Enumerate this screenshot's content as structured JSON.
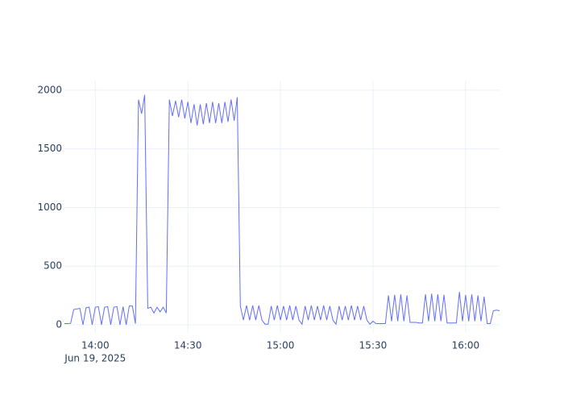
{
  "chart_data": {
    "type": "line",
    "color": "#636efa",
    "grid": true,
    "x_date_label": "Jun 19, 2025",
    "xlim": [
      "2025-06-19 13:50",
      "2025-06-19 16:11"
    ],
    "ylim": [
      -69,
      2082
    ],
    "yticks": [
      0,
      500,
      1000,
      1500,
      2000
    ],
    "xticks": [
      {
        "value": "2025-06-19 14:00",
        "label": "14:00"
      },
      {
        "value": "2025-06-19 14:30",
        "label": "14:30"
      },
      {
        "value": "2025-06-19 15:00",
        "label": "15:00"
      },
      {
        "value": "2025-06-19 15:30",
        "label": "15:30"
      },
      {
        "value": "2025-06-19 16:00",
        "label": "16:00"
      }
    ],
    "x": [
      "2025-06-19 13:50",
      "2025-06-19 13:51",
      "2025-06-19 13:52",
      "2025-06-19 13:53",
      "2025-06-19 13:54",
      "2025-06-19 13:55",
      "2025-06-19 13:56",
      "2025-06-19 13:57",
      "2025-06-19 13:58",
      "2025-06-19 13:59",
      "2025-06-19 14:00",
      "2025-06-19 14:01",
      "2025-06-19 14:02",
      "2025-06-19 14:03",
      "2025-06-19 14:04",
      "2025-06-19 14:05",
      "2025-06-19 14:06",
      "2025-06-19 14:07",
      "2025-06-19 14:08",
      "2025-06-19 14:09",
      "2025-06-19 14:10",
      "2025-06-19 14:11",
      "2025-06-19 14:12",
      "2025-06-19 14:13",
      "2025-06-19 14:14",
      "2025-06-19 14:15",
      "2025-06-19 14:16",
      "2025-06-19 14:17",
      "2025-06-19 14:18",
      "2025-06-19 14:19",
      "2025-06-19 14:20",
      "2025-06-19 14:21",
      "2025-06-19 14:22",
      "2025-06-19 14:23",
      "2025-06-19 14:24",
      "2025-06-19 14:25",
      "2025-06-19 14:26",
      "2025-06-19 14:27",
      "2025-06-19 14:28",
      "2025-06-19 14:29",
      "2025-06-19 14:30",
      "2025-06-19 14:31",
      "2025-06-19 14:32",
      "2025-06-19 14:33",
      "2025-06-19 14:34",
      "2025-06-19 14:35",
      "2025-06-19 14:36",
      "2025-06-19 14:37",
      "2025-06-19 14:38",
      "2025-06-19 14:39",
      "2025-06-19 14:40",
      "2025-06-19 14:41",
      "2025-06-19 14:42",
      "2025-06-19 14:43",
      "2025-06-19 14:44",
      "2025-06-19 14:45",
      "2025-06-19 14:46",
      "2025-06-19 14:47",
      "2025-06-19 14:48",
      "2025-06-19 14:49",
      "2025-06-19 14:50",
      "2025-06-19 14:51",
      "2025-06-19 14:52",
      "2025-06-19 14:53",
      "2025-06-19 14:54",
      "2025-06-19 14:55",
      "2025-06-19 14:56",
      "2025-06-19 14:57",
      "2025-06-19 14:58",
      "2025-06-19 14:59",
      "2025-06-19 15:00",
      "2025-06-19 15:01",
      "2025-06-19 15:02",
      "2025-06-19 15:03",
      "2025-06-19 15:04",
      "2025-06-19 15:05",
      "2025-06-19 15:06",
      "2025-06-19 15:07",
      "2025-06-19 15:08",
      "2025-06-19 15:09",
      "2025-06-19 15:10",
      "2025-06-19 15:11",
      "2025-06-19 15:12",
      "2025-06-19 15:13",
      "2025-06-19 15:14",
      "2025-06-19 15:15",
      "2025-06-19 15:16",
      "2025-06-19 15:17",
      "2025-06-19 15:18",
      "2025-06-19 15:19",
      "2025-06-19 15:20",
      "2025-06-19 15:21",
      "2025-06-19 15:22",
      "2025-06-19 15:23",
      "2025-06-19 15:24",
      "2025-06-19 15:25",
      "2025-06-19 15:26",
      "2025-06-19 15:27",
      "2025-06-19 15:28",
      "2025-06-19 15:29",
      "2025-06-19 15:30",
      "2025-06-19 15:31",
      "2025-06-19 15:32",
      "2025-06-19 15:33",
      "2025-06-19 15:34",
      "2025-06-19 15:35",
      "2025-06-19 15:36",
      "2025-06-19 15:37",
      "2025-06-19 15:38",
      "2025-06-19 15:39",
      "2025-06-19 15:40",
      "2025-06-19 15:41",
      "2025-06-19 15:42",
      "2025-06-19 15:43",
      "2025-06-19 15:44",
      "2025-06-19 15:45",
      "2025-06-19 15:46",
      "2025-06-19 15:47",
      "2025-06-19 15:48",
      "2025-06-19 15:49",
      "2025-06-19 15:50",
      "2025-06-19 15:51",
      "2025-06-19 15:52",
      "2025-06-19 15:53",
      "2025-06-19 15:54",
      "2025-06-19 15:55",
      "2025-06-19 15:56",
      "2025-06-19 15:57",
      "2025-06-19 15:58",
      "2025-06-19 15:59",
      "2025-06-19 16:00",
      "2025-06-19 16:01",
      "2025-06-19 16:02",
      "2025-06-19 16:03",
      "2025-06-19 16:04",
      "2025-06-19 16:05",
      "2025-06-19 16:06",
      "2025-06-19 16:07",
      "2025-06-19 16:08",
      "2025-06-19 16:09",
      "2025-06-19 16:10",
      "2025-06-19 16:11"
    ],
    "values": [
      10,
      10,
      12,
      130,
      135,
      140,
      0,
      145,
      150,
      0,
      150,
      155,
      0,
      150,
      155,
      0,
      150,
      155,
      0,
      155,
      0,
      160,
      160,
      10,
      1920,
      1800,
      1960,
      140,
      150,
      100,
      150,
      110,
      150,
      100,
      1920,
      1780,
      1910,
      1770,
      1920,
      1760,
      1900,
      1720,
      1880,
      1700,
      1880,
      1710,
      1890,
      1720,
      1900,
      1720,
      1890,
      1720,
      1900,
      1730,
      1920,
      1740,
      1940,
      160,
      40,
      165,
      40,
      165,
      40,
      165,
      40,
      5,
      5,
      160,
      40,
      165,
      40,
      160,
      40,
      165,
      40,
      160,
      40,
      5,
      160,
      40,
      165,
      40,
      160,
      40,
      165,
      40,
      160,
      40,
      5,
      160,
      40,
      160,
      40,
      165,
      40,
      160,
      40,
      160,
      40,
      5,
      30,
      10,
      10,
      10,
      10,
      250,
      30,
      255,
      30,
      260,
      30,
      250,
      20,
      20,
      20,
      15,
      15,
      260,
      30,
      265,
      30,
      260,
      30,
      255,
      15,
      15,
      15,
      15,
      280,
      30,
      255,
      30,
      260,
      30,
      250,
      30,
      240,
      10,
      10,
      120,
      125,
      120
    ]
  }
}
